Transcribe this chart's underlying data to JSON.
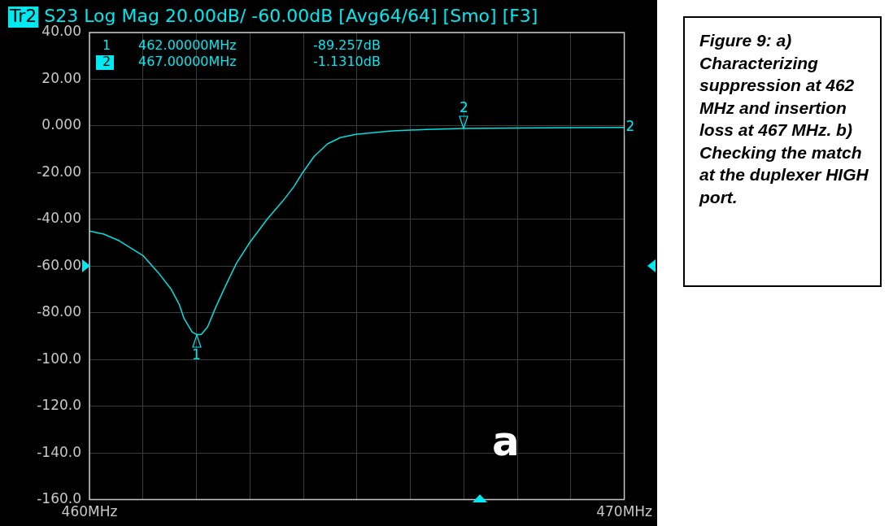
{
  "chart_data": {
    "type": "line",
    "title": "Tr2 S23 Log Mag 20.00dB/ -60.00dB [Avg64/64] [Smo] [F3]",
    "x": [
      460.0,
      460.27,
      460.56,
      461.0,
      461.29,
      461.53,
      461.68,
      461.77,
      461.92,
      462.0,
      462.09,
      462.21,
      462.36,
      462.55,
      462.75,
      463.0,
      463.33,
      463.62,
      463.82,
      463.98,
      464.2,
      464.45,
      464.69,
      464.98,
      465.66,
      466.3,
      467.0,
      468.0,
      469.0,
      470.0
    ],
    "series": [
      {
        "color": "#00e0e0",
        "values": [
          -45,
          -46.3,
          -49.2,
          -55.5,
          -62.9,
          -70,
          -76.5,
          -82.5,
          -88.2,
          -89.3,
          -89.3,
          -86,
          -77.7,
          -68.2,
          -58.7,
          -49.8,
          -39.7,
          -32,
          -26.1,
          -20.2,
          -13.1,
          -7.7,
          -5,
          -3.6,
          -2.1,
          -1.5,
          -1.1,
          -0.9,
          -0.7,
          -0.6
        ]
      }
    ],
    "xlim": [
      460,
      470
    ],
    "xticks": [
      {
        "value": 460,
        "label": "460MHz"
      },
      {
        "value": 461,
        "label": null
      },
      {
        "value": 462,
        "label": null
      },
      {
        "value": 463,
        "label": null
      },
      {
        "value": 464,
        "label": null
      },
      {
        "value": 465,
        "label": null
      },
      {
        "value": 466,
        "label": null
      },
      {
        "value": 467,
        "label": null
      },
      {
        "value": 468,
        "label": null
      },
      {
        "value": 469,
        "label": null
      },
      {
        "value": 470,
        "label": "470MHz"
      }
    ],
    "ylim": [
      -160,
      40
    ],
    "yticks": [
      {
        "value": 40,
        "label": "40.00"
      },
      {
        "value": 20,
        "label": "20.00"
      },
      {
        "value": 0,
        "label": "0.000"
      },
      {
        "value": -20,
        "label": "-20.00"
      },
      {
        "value": -40,
        "label": "-40.00"
      },
      {
        "value": -60,
        "label": "-60.00"
      },
      {
        "value": -80,
        "label": "-80.00"
      },
      {
        "value": -100,
        "label": "-100.0"
      },
      {
        "value": -120,
        "label": "-120.0"
      },
      {
        "value": -140,
        "label": "-140.0"
      },
      {
        "value": -160,
        "label": "-160.0"
      }
    ],
    "grid": true,
    "marker": "none",
    "line_style": "solid",
    "legend": false,
    "annotations": [
      "1 462.00000MHz -89.257dB",
      "2 467.00000MHz -1.1310dB",
      {
        "text": "1",
        "x": 462,
        "y": -89.257
      },
      {
        "text": "2",
        "x": 467,
        "y": -1.131
      },
      {
        "text": "2",
        "x": 470,
        "y": -0.6
      },
      "a",
      "Figure 9: a) Characterizing suppression at 462 MHz and insertion loss at 467 MHz. b) Checking the match at the duplexer HIGH port."
    ]
  }
}
